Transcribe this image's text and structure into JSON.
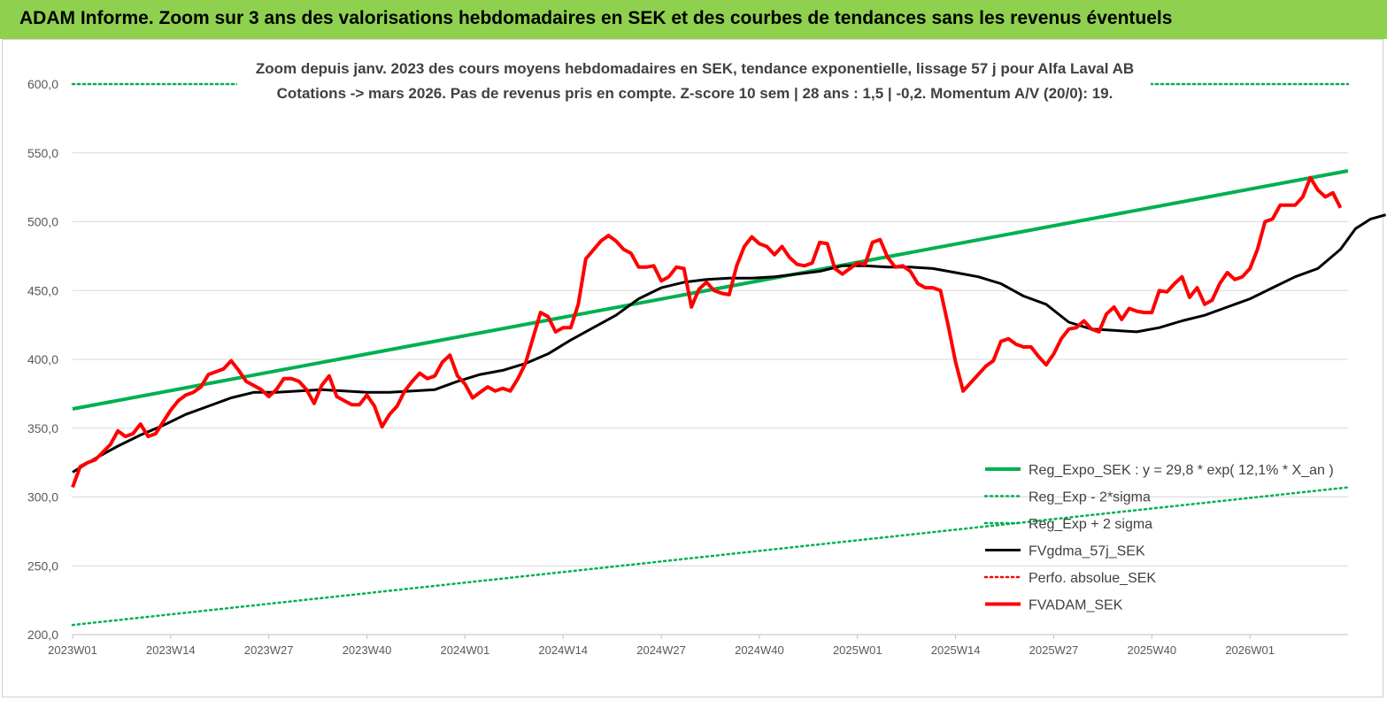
{
  "header": {
    "title": "ADAM Informe. Zoom sur 3 ans des valorisations hebdomadaires en SEK et des courbes de tendances sans les revenus éventuels"
  },
  "chart_data": {
    "type": "line",
    "title_lines": [
      "Zoom depuis janv. 2023 des cours moyens hebdomadaires en SEK, tendance exponentielle, lissage 57 j pour Alfa Laval AB",
      "Cotations -> mars 2026. Pas de revenus pris en compte. Z-score 10 sem | 28 ans : 1,5 | -0,2. Momentum A/V (20/0): 19."
    ],
    "xlabel": "",
    "ylabel": "",
    "ylim": [
      200,
      600
    ],
    "yticks": [
      "200,0",
      "250,0",
      "300,0",
      "350,0",
      "400,0",
      "450,0",
      "500,0",
      "550,0",
      "600,0"
    ],
    "x_categories": [
      "2023W01",
      "2023W14",
      "2023W27",
      "2023W40",
      "2024W01",
      "2024W14",
      "2024W27",
      "2024W40",
      "2025W01",
      "2025W14",
      "2025W27",
      "2025W40",
      "2026W01"
    ],
    "x_range_weeks": [
      0,
      169
    ],
    "legend_position": "bottom-right",
    "series": [
      {
        "name": "Reg_Expo_SEK : y = 29,8 * exp( 12,1% *  X_an )",
        "color": "#00b050",
        "style": "solid-thick",
        "points": [
          [
            0,
            364
          ],
          [
            169,
            537
          ]
        ]
      },
      {
        "name": "Reg_Exp - 2*sigma",
        "color": "#00b050",
        "style": "dotted",
        "points": [
          [
            0,
            207
          ],
          [
            169,
            307
          ]
        ]
      },
      {
        "name": "Reg_Exp + 2 sigma",
        "color": "#00b050",
        "style": "dotted",
        "points": [
          [
            0,
            600
          ],
          [
            169,
            600
          ]
        ]
      },
      {
        "name": "FVgdma_57j_SEK",
        "color": "#000000",
        "style": "solid",
        "points": [
          [
            0,
            318
          ],
          [
            3,
            328
          ],
          [
            6,
            337
          ],
          [
            9,
            345
          ],
          [
            12,
            352
          ],
          [
            15,
            360
          ],
          [
            18,
            366
          ],
          [
            21,
            372
          ],
          [
            24,
            376
          ],
          [
            27,
            376
          ],
          [
            30,
            377
          ],
          [
            33,
            378
          ],
          [
            36,
            377
          ],
          [
            39,
            376
          ],
          [
            42,
            376
          ],
          [
            45,
            377
          ],
          [
            48,
            378
          ],
          [
            51,
            384
          ],
          [
            54,
            389
          ],
          [
            57,
            392
          ],
          [
            60,
            397
          ],
          [
            63,
            404
          ],
          [
            66,
            414
          ],
          [
            69,
            423
          ],
          [
            72,
            432
          ],
          [
            75,
            444
          ],
          [
            78,
            452
          ],
          [
            81,
            456
          ],
          [
            84,
            458
          ],
          [
            87,
            459
          ],
          [
            90,
            459
          ],
          [
            93,
            460
          ],
          [
            96,
            462
          ],
          [
            99,
            464
          ],
          [
            102,
            468
          ],
          [
            105,
            468
          ],
          [
            108,
            467
          ],
          [
            111,
            467
          ],
          [
            114,
            466
          ],
          [
            117,
            463
          ],
          [
            120,
            460
          ],
          [
            123,
            455
          ],
          [
            126,
            446
          ],
          [
            129,
            440
          ],
          [
            132,
            427
          ],
          [
            135,
            422
          ],
          [
            138,
            421
          ],
          [
            141,
            420
          ],
          [
            144,
            423
          ],
          [
            147,
            428
          ],
          [
            150,
            432
          ],
          [
            153,
            438
          ],
          [
            156,
            444
          ],
          [
            159,
            452
          ],
          [
            162,
            460
          ],
          [
            165,
            466
          ],
          [
            168,
            480
          ],
          [
            170,
            495
          ],
          [
            172,
            502
          ],
          [
            174,
            505
          ]
        ]
      },
      {
        "name": "Perfo. absolue_SEK",
        "color": "#ff0000",
        "style": "dotted",
        "points": []
      },
      {
        "name": "FVADAM_SEK",
        "color": "#ff0000",
        "style": "solid-thick",
        "points": [
          [
            0,
            307
          ],
          [
            1,
            322
          ],
          [
            2,
            325
          ],
          [
            3,
            327
          ],
          [
            5,
            338
          ],
          [
            6,
            348
          ],
          [
            7,
            344
          ],
          [
            8,
            346
          ],
          [
            9,
            353
          ],
          [
            10,
            344
          ],
          [
            11,
            346
          ],
          [
            13,
            363
          ],
          [
            14,
            370
          ],
          [
            15,
            374
          ],
          [
            16,
            376
          ],
          [
            17,
            380
          ],
          [
            18,
            389
          ],
          [
            20,
            393
          ],
          [
            21,
            399
          ],
          [
            22,
            392
          ],
          [
            23,
            384
          ],
          [
            25,
            378
          ],
          [
            26,
            373
          ],
          [
            27,
            378
          ],
          [
            28,
            386
          ],
          [
            29,
            386
          ],
          [
            30,
            384
          ],
          [
            31,
            378
          ],
          [
            32,
            368
          ],
          [
            33,
            381
          ],
          [
            34,
            388
          ],
          [
            35,
            373
          ],
          [
            36,
            370
          ],
          [
            37,
            367
          ],
          [
            38,
            367
          ],
          [
            39,
            374
          ],
          [
            40,
            366
          ],
          [
            41,
            351
          ],
          [
            42,
            360
          ],
          [
            43,
            366
          ],
          [
            44,
            377
          ],
          [
            45,
            384
          ],
          [
            46,
            390
          ],
          [
            47,
            386
          ],
          [
            48,
            388
          ],
          [
            49,
            398
          ],
          [
            50,
            403
          ],
          [
            51,
            388
          ],
          [
            52,
            382
          ],
          [
            53,
            372
          ],
          [
            54,
            376
          ],
          [
            55,
            380
          ],
          [
            56,
            377
          ],
          [
            57,
            379
          ],
          [
            58,
            377
          ],
          [
            59,
            386
          ],
          [
            60,
            397
          ],
          [
            62,
            434
          ],
          [
            63,
            431
          ],
          [
            64,
            420
          ],
          [
            65,
            423
          ],
          [
            66,
            423
          ],
          [
            67,
            440
          ],
          [
            68,
            473
          ],
          [
            70,
            486
          ],
          [
            71,
            490
          ],
          [
            72,
            486
          ],
          [
            73,
            480
          ],
          [
            74,
            477
          ],
          [
            75,
            467
          ],
          [
            76,
            467
          ],
          [
            77,
            468
          ],
          [
            78,
            457
          ],
          [
            79,
            460
          ],
          [
            80,
            467
          ],
          [
            81,
            466
          ],
          [
            82,
            438
          ],
          [
            83,
            451
          ],
          [
            84,
            456
          ],
          [
            85,
            450
          ],
          [
            86,
            448
          ],
          [
            87,
            447
          ],
          [
            88,
            468
          ],
          [
            89,
            482
          ],
          [
            90,
            489
          ],
          [
            91,
            484
          ],
          [
            92,
            482
          ],
          [
            93,
            476
          ],
          [
            94,
            482
          ],
          [
            95,
            474
          ],
          [
            96,
            469
          ],
          [
            97,
            468
          ],
          [
            98,
            470
          ],
          [
            99,
            485
          ],
          [
            100,
            484
          ],
          [
            101,
            466
          ],
          [
            102,
            462
          ],
          [
            103,
            466
          ],
          [
            104,
            470
          ],
          [
            105,
            469
          ],
          [
            106,
            485
          ],
          [
            107,
            487
          ],
          [
            108,
            474
          ],
          [
            109,
            467
          ],
          [
            110,
            468
          ],
          [
            111,
            464
          ],
          [
            112,
            455
          ],
          [
            113,
            452
          ],
          [
            114,
            452
          ],
          [
            115,
            450
          ],
          [
            116,
            425
          ],
          [
            117,
            398
          ],
          [
            118,
            377
          ],
          [
            119,
            383
          ],
          [
            120,
            389
          ],
          [
            121,
            395
          ],
          [
            122,
            399
          ],
          [
            123,
            413
          ],
          [
            124,
            415
          ],
          [
            125,
            411
          ],
          [
            126,
            409
          ],
          [
            127,
            409
          ],
          [
            128,
            402
          ],
          [
            129,
            396
          ],
          [
            130,
            404
          ],
          [
            131,
            415
          ],
          [
            132,
            422
          ],
          [
            133,
            423
          ],
          [
            134,
            428
          ],
          [
            135,
            422
          ],
          [
            136,
            420
          ],
          [
            137,
            433
          ],
          [
            138,
            438
          ],
          [
            139,
            429
          ],
          [
            140,
            437
          ],
          [
            141,
            435
          ],
          [
            142,
            434
          ],
          [
            143,
            434
          ],
          [
            144,
            450
          ],
          [
            145,
            449
          ],
          [
            146,
            455
          ],
          [
            147,
            460
          ],
          [
            148,
            445
          ],
          [
            149,
            452
          ],
          [
            150,
            440
          ],
          [
            151,
            443
          ],
          [
            152,
            455
          ],
          [
            153,
            463
          ],
          [
            154,
            458
          ],
          [
            155,
            460
          ],
          [
            156,
            466
          ],
          [
            157,
            480
          ],
          [
            158,
            500
          ],
          [
            159,
            502
          ],
          [
            160,
            512
          ],
          [
            161,
            512
          ],
          [
            162,
            512
          ],
          [
            163,
            518
          ],
          [
            164,
            532
          ],
          [
            165,
            523
          ],
          [
            166,
            518
          ],
          [
            167,
            521
          ],
          [
            168,
            510
          ]
        ]
      }
    ]
  }
}
